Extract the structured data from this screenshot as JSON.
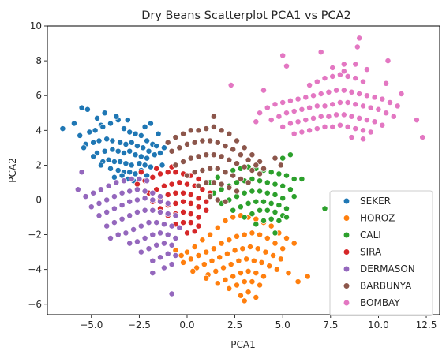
{
  "chart_data": {
    "type": "scatter",
    "title": "Dry Beans Scatterplot PCA1 vs PCA2",
    "xlabel": "PCA1",
    "ylabel": "PCA2",
    "xlim": [
      -7.3,
      13.2
    ],
    "ylim": [
      -6.6,
      10.0
    ],
    "grid": false,
    "legend_position": "lower-right",
    "x_ticks": [
      -5.0,
      -2.5,
      0.0,
      2.5,
      5.0,
      7.5,
      10.0,
      12.5
    ],
    "x_tick_labels": [
      "−5.0",
      "−2.5",
      "0.0",
      "2.5",
      "5.0",
      "7.5",
      "10.0",
      "12.5"
    ],
    "y_ticks": [
      -6,
      -4,
      -2,
      0,
      2,
      4,
      6,
      8,
      10
    ],
    "y_tick_labels": [
      "−6",
      "−4",
      "−2",
      "0",
      "2",
      "4",
      "6",
      "8",
      "10"
    ],
    "series": [
      {
        "name": "SEKER",
        "color": "#1f77b4",
        "x": [
          -6.5,
          -5.9,
          -5.5,
          -5.2,
          -4.7,
          -4.5,
          -5.6,
          -5.1,
          -4.8,
          -4.4,
          -4.0,
          -3.6,
          -3.3,
          -3.0,
          -2.7,
          -2.4,
          -2.1,
          -1.8,
          -1.6,
          -1.4,
          -5.3,
          -4.9,
          -4.6,
          -4.2,
          -3.9,
          -3.5,
          -3.2,
          -2.9,
          -2.6,
          -2.3,
          -2.0,
          -1.7,
          -4.7,
          -4.3,
          -3.9,
          -3.6,
          -3.3,
          -3.0,
          -2.7,
          -2.4,
          -2.1,
          -4.4,
          -4.1,
          -3.8,
          -3.5,
          -3.2,
          -2.9,
          -2.5,
          -2.2,
          -1.9,
          -1.6,
          -1.3,
          -4.0,
          -3.6,
          -3.3,
          -3.0,
          -2.7,
          -2.4,
          -2.1,
          -3.8,
          -3.4,
          -3.1,
          -2.8,
          -2.5,
          -5.4,
          -4.9,
          -4.5,
          -2.2,
          -1.9,
          -1.5,
          -1.2,
          -3.7,
          -4.3,
          -3.1
        ],
        "y": [
          4.1,
          4.4,
          5.3,
          5.2,
          4.7,
          4.3,
          3.7,
          3.9,
          4.0,
          4.2,
          4.4,
          4.6,
          4.1,
          3.9,
          3.8,
          3.7,
          3.4,
          3.2,
          3.1,
          2.7,
          3.2,
          3.3,
          3.4,
          3.5,
          3.4,
          3.3,
          3.2,
          3.3,
          3.1,
          3.0,
          2.8,
          2.6,
          2.7,
          2.8,
          2.9,
          2.8,
          2.7,
          2.8,
          2.6,
          2.5,
          2.4,
          2.2,
          2.3,
          2.2,
          2.2,
          2.1,
          2.0,
          2.1,
          2.0,
          1.9,
          1.8,
          2.0,
          1.8,
          1.7,
          1.6,
          1.6,
          1.5,
          1.7,
          1.4,
          1.3,
          1.4,
          1.2,
          1.1,
          1.2,
          3.0,
          2.5,
          2.0,
          4.2,
          4.4,
          3.8,
          3.0,
          4.8,
          5.0,
          4.6
        ]
      },
      {
        "name": "HOROZ",
        "color": "#ff7f0e",
        "x": [
          -0.6,
          -0.3,
          0.0,
          0.4,
          0.8,
          1.2,
          1.6,
          2.0,
          2.4,
          2.8,
          3.2,
          3.6,
          4.0,
          4.4,
          4.8,
          5.2,
          5.6,
          -0.2,
          0.2,
          0.6,
          1.0,
          1.4,
          1.8,
          2.2,
          2.6,
          3.0,
          3.4,
          3.8,
          4.2,
          4.6,
          5.0,
          0.5,
          0.9,
          1.3,
          1.7,
          2.1,
          2.5,
          2.9,
          3.3,
          3.7,
          4.1,
          4.5,
          4.9,
          1.1,
          1.5,
          1.9,
          2.3,
          2.7,
          3.1,
          3.5,
          3.9,
          4.3,
          4.7,
          1.6,
          2.0,
          2.4,
          2.8,
          3.2,
          3.6,
          4.0,
          2.2,
          2.6,
          3.0,
          3.4,
          3.8,
          2.8,
          3.2,
          3.6,
          0.3,
          1.0,
          5.3,
          5.8,
          6.3,
          3.0
        ],
        "y": [
          -2.9,
          -3.2,
          -3.0,
          -2.7,
          -2.3,
          -2.0,
          -1.6,
          -1.2,
          -1.0,
          -0.9,
          -1.0,
          -1.1,
          -1.3,
          -1.5,
          -1.9,
          -2.2,
          -2.5,
          -3.6,
          -3.4,
          -3.2,
          -3.0,
          -2.8,
          -2.5,
          -2.3,
          -2.1,
          -2.0,
          -1.9,
          -2.0,
          -2.2,
          -2.5,
          -2.8,
          -3.9,
          -3.7,
          -3.5,
          -3.3,
          -3.1,
          -2.9,
          -2.8,
          -2.7,
          -2.8,
          -3.0,
          -3.2,
          -3.4,
          -4.3,
          -4.1,
          -3.9,
          -3.7,
          -3.5,
          -3.4,
          -3.5,
          -3.6,
          -3.8,
          -4.0,
          -4.8,
          -4.6,
          -4.4,
          -4.2,
          -4.1,
          -4.2,
          -4.4,
          -5.1,
          -4.9,
          -4.7,
          -4.7,
          -4.9,
          -5.5,
          -5.3,
          -5.6,
          -4.1,
          -4.5,
          -4.2,
          -4.7,
          -4.4,
          -5.8
        ]
      },
      {
        "name": "CALI",
        "color": "#2ca02c",
        "x": [
          1.2,
          1.6,
          2.0,
          2.4,
          2.8,
          3.2,
          3.6,
          4.0,
          4.4,
          4.8,
          5.2,
          5.6,
          1.4,
          1.8,
          2.2,
          2.6,
          3.0,
          3.4,
          3.8,
          4.2,
          4.6,
          5.0,
          5.4,
          1.8,
          2.2,
          2.6,
          3.0,
          3.4,
          3.8,
          4.2,
          4.6,
          5.0,
          2.4,
          2.8,
          3.2,
          3.6,
          4.0,
          4.4,
          4.8,
          5.2,
          3.0,
          3.4,
          3.8,
          4.2,
          4.6,
          5.0,
          3.6,
          4.0,
          4.4,
          4.8,
          5.2,
          5.6,
          6.0,
          5.4,
          7.2,
          4.6,
          3.8,
          5.0
        ],
        "y": [
          1.0,
          1.3,
          1.6,
          1.7,
          1.8,
          1.9,
          1.8,
          1.7,
          1.6,
          1.5,
          1.4,
          1.2,
          0.4,
          0.6,
          0.8,
          1.0,
          1.1,
          1.2,
          1.1,
          1.0,
          0.9,
          0.8,
          0.6,
          -0.2,
          0.0,
          0.2,
          0.4,
          0.5,
          0.5,
          0.4,
          0.3,
          0.1,
          -0.6,
          -0.4,
          -0.2,
          -0.1,
          -0.1,
          -0.2,
          -0.3,
          -0.5,
          -1.0,
          -0.8,
          -0.6,
          -0.6,
          -0.7,
          -0.9,
          -1.4,
          -1.2,
          -1.1,
          -1.2,
          -1.0,
          0.2,
          1.2,
          2.6,
          -0.5,
          -1.9,
          2.2,
          2.4
        ]
      },
      {
        "name": "SIRA",
        "color": "#d62728",
        "x": [
          -2.6,
          -2.2,
          -1.8,
          -1.4,
          -1.0,
          -0.6,
          -0.2,
          0.2,
          0.6,
          1.0,
          -2.0,
          -1.6,
          -1.2,
          -0.8,
          -0.4,
          0.0,
          0.4,
          0.8,
          1.2,
          -1.8,
          -1.4,
          -1.0,
          -0.6,
          -0.2,
          0.2,
          0.6,
          1.0,
          -1.4,
          -1.0,
          -0.6,
          -0.2,
          0.2,
          0.6,
          1.0,
          -1.0,
          -0.6,
          -0.2,
          0.2,
          0.6,
          -0.6,
          -0.2,
          0.2,
          0.6,
          0.0,
          0.4,
          -2.4,
          -1.6,
          -0.8
        ],
        "y": [
          0.9,
          1.1,
          1.3,
          1.5,
          1.6,
          1.6,
          1.5,
          1.4,
          1.2,
          1.0,
          0.4,
          0.6,
          0.8,
          0.9,
          1.0,
          0.9,
          0.8,
          0.6,
          0.4,
          -0.1,
          0.1,
          0.3,
          0.4,
          0.4,
          0.3,
          0.1,
          -0.1,
          -0.5,
          -0.3,
          -0.2,
          -0.1,
          -0.2,
          -0.4,
          -0.6,
          -0.9,
          -0.8,
          -0.7,
          -0.8,
          -1.0,
          -1.4,
          -1.3,
          -1.3,
          -1.5,
          -1.9,
          -1.8,
          1.6,
          1.8,
          1.9
        ]
      },
      {
        "name": "DERMASON",
        "color": "#9467bd",
        "x": [
          -5.3,
          -4.9,
          -4.5,
          -4.1,
          -3.7,
          -3.3,
          -2.9,
          -2.5,
          -2.1,
          -5.0,
          -4.6,
          -4.2,
          -3.8,
          -3.4,
          -3.0,
          -2.6,
          -2.2,
          -1.8,
          -1.4,
          -4.6,
          -4.2,
          -3.8,
          -3.4,
          -3.0,
          -2.6,
          -2.2,
          -1.8,
          -1.4,
          -1.0,
          -4.2,
          -3.8,
          -3.4,
          -3.0,
          -2.6,
          -2.2,
          -1.8,
          -1.4,
          -1.0,
          -0.6,
          -3.6,
          -3.2,
          -2.8,
          -2.4,
          -2.0,
          -1.6,
          -1.2,
          -0.8,
          -0.4,
          -3.0,
          -2.6,
          -2.2,
          -1.8,
          -1.4,
          -1.0,
          -0.6,
          -2.4,
          -2.0,
          -1.6,
          -1.2,
          -0.8,
          -1.8,
          -1.4,
          -1.0,
          -0.6,
          -1.2,
          -0.8,
          -5.5,
          -5.7,
          -4.0,
          -0.8,
          -1.8
        ],
        "y": [
          0.2,
          0.4,
          0.6,
          0.8,
          1.0,
          1.1,
          1.2,
          1.2,
          1.1,
          -0.4,
          -0.2,
          0.0,
          0.2,
          0.4,
          0.5,
          0.6,
          0.5,
          0.4,
          0.2,
          -0.9,
          -0.7,
          -0.5,
          -0.3,
          -0.1,
          0.0,
          0.1,
          0.0,
          -0.1,
          -0.2,
          -1.5,
          -1.3,
          -1.1,
          -0.9,
          -0.7,
          -0.6,
          -0.6,
          -0.7,
          -0.8,
          -0.9,
          -2.0,
          -1.9,
          -1.7,
          -1.5,
          -1.3,
          -1.3,
          -1.4,
          -1.5,
          -1.6,
          -2.5,
          -2.4,
          -2.2,
          -2.0,
          -1.9,
          -2.0,
          -2.2,
          -3.0,
          -2.8,
          -2.6,
          -2.5,
          -2.6,
          -3.5,
          -3.3,
          -3.1,
          -3.2,
          -3.9,
          -3.7,
          1.6,
          0.6,
          -2.2,
          -5.4,
          -4.2
        ]
      },
      {
        "name": "BARBUNYA",
        "color": "#8c564b",
        "x": [
          -0.6,
          -0.2,
          0.2,
          0.6,
          1.0,
          1.4,
          1.8,
          2.2,
          2.6,
          3.0,
          3.4,
          3.8,
          -0.8,
          -0.4,
          0.0,
          0.4,
          0.8,
          1.2,
          1.6,
          2.0,
          2.4,
          2.8,
          3.2,
          3.6,
          4.0,
          -0.6,
          -0.2,
          0.2,
          0.6,
          1.0,
          1.4,
          1.8,
          2.2,
          2.6,
          3.0,
          3.4,
          3.8,
          0.0,
          0.4,
          0.8,
          1.2,
          1.6,
          2.0,
          2.4,
          2.8,
          3.2,
          0.6,
          1.0,
          1.4,
          1.8,
          2.2,
          2.6,
          1.2,
          1.6,
          2.0,
          1.4,
          -1.0,
          4.6,
          4.9
        ],
        "y": [
          3.6,
          3.8,
          4.0,
          4.0,
          4.1,
          4.2,
          4.0,
          3.8,
          3.4,
          3.0,
          2.6,
          2.2,
          2.8,
          3.0,
          3.2,
          3.3,
          3.4,
          3.4,
          3.3,
          3.1,
          2.9,
          2.6,
          2.3,
          2.0,
          1.8,
          2.0,
          2.2,
          2.4,
          2.5,
          2.6,
          2.6,
          2.5,
          2.3,
          2.1,
          1.9,
          1.7,
          1.5,
          1.4,
          1.6,
          1.7,
          1.8,
          1.8,
          1.6,
          1.4,
          1.2,
          1.0,
          0.8,
          1.0,
          1.0,
          0.9,
          0.7,
          0.5,
          0.2,
          0.0,
          -0.1,
          4.8,
          3.3,
          2.4,
          2.0
        ]
      },
      {
        "name": "BOMBAY",
        "color": "#e377c2",
        "x": [
          3.8,
          4.2,
          4.6,
          5.0,
          5.4,
          5.8,
          6.2,
          6.6,
          7.0,
          7.4,
          7.8,
          8.2,
          8.6,
          9.0,
          9.4,
          9.8,
          10.2,
          10.6,
          11.0,
          4.4,
          4.8,
          5.2,
          5.6,
          6.0,
          6.4,
          6.8,
          7.2,
          7.6,
          8.0,
          8.4,
          8.8,
          9.2,
          9.6,
          10.0,
          10.4,
          10.8,
          5.0,
          5.4,
          5.8,
          6.2,
          6.6,
          7.0,
          7.4,
          7.8,
          8.2,
          8.6,
          9.0,
          9.4,
          9.8,
          10.2,
          5.6,
          6.0,
          6.4,
          6.8,
          7.2,
          7.6,
          8.0,
          8.4,
          8.8,
          9.2,
          9.6,
          6.4,
          6.8,
          7.2,
          7.6,
          8.0,
          8.4,
          8.8,
          9.2,
          7.6,
          8.2,
          8.8,
          9.4,
          3.6,
          2.3,
          4.0,
          5.0,
          12.3,
          12.0,
          11.2,
          10.5,
          9.0,
          8.9,
          5.2,
          8.2,
          8.6,
          9.2,
          10.4,
          7.0
        ],
        "y": [
          5.0,
          5.3,
          5.5,
          5.6,
          5.7,
          5.8,
          5.9,
          6.0,
          6.1,
          6.2,
          6.3,
          6.3,
          6.2,
          6.1,
          6.0,
          5.9,
          5.8,
          5.6,
          5.4,
          4.6,
          4.8,
          5.0,
          5.1,
          5.2,
          5.3,
          5.4,
          5.4,
          5.5,
          5.6,
          5.6,
          5.5,
          5.4,
          5.3,
          5.2,
          5.0,
          4.8,
          4.2,
          4.4,
          4.5,
          4.6,
          4.7,
          4.8,
          4.8,
          4.9,
          4.9,
          4.8,
          4.7,
          4.6,
          4.5,
          4.3,
          3.8,
          3.9,
          4.0,
          4.1,
          4.2,
          4.2,
          4.3,
          4.2,
          4.1,
          4.0,
          3.9,
          6.6,
          6.8,
          7.0,
          7.1,
          7.2,
          7.1,
          7.0,
          6.8,
          7.6,
          7.4,
          7.8,
          7.5,
          4.5,
          6.6,
          6.3,
          8.3,
          3.6,
          4.6,
          6.1,
          8.0,
          9.3,
          8.8,
          7.7,
          7.8,
          3.6,
          3.5,
          6.7,
          8.5
        ]
      }
    ]
  }
}
